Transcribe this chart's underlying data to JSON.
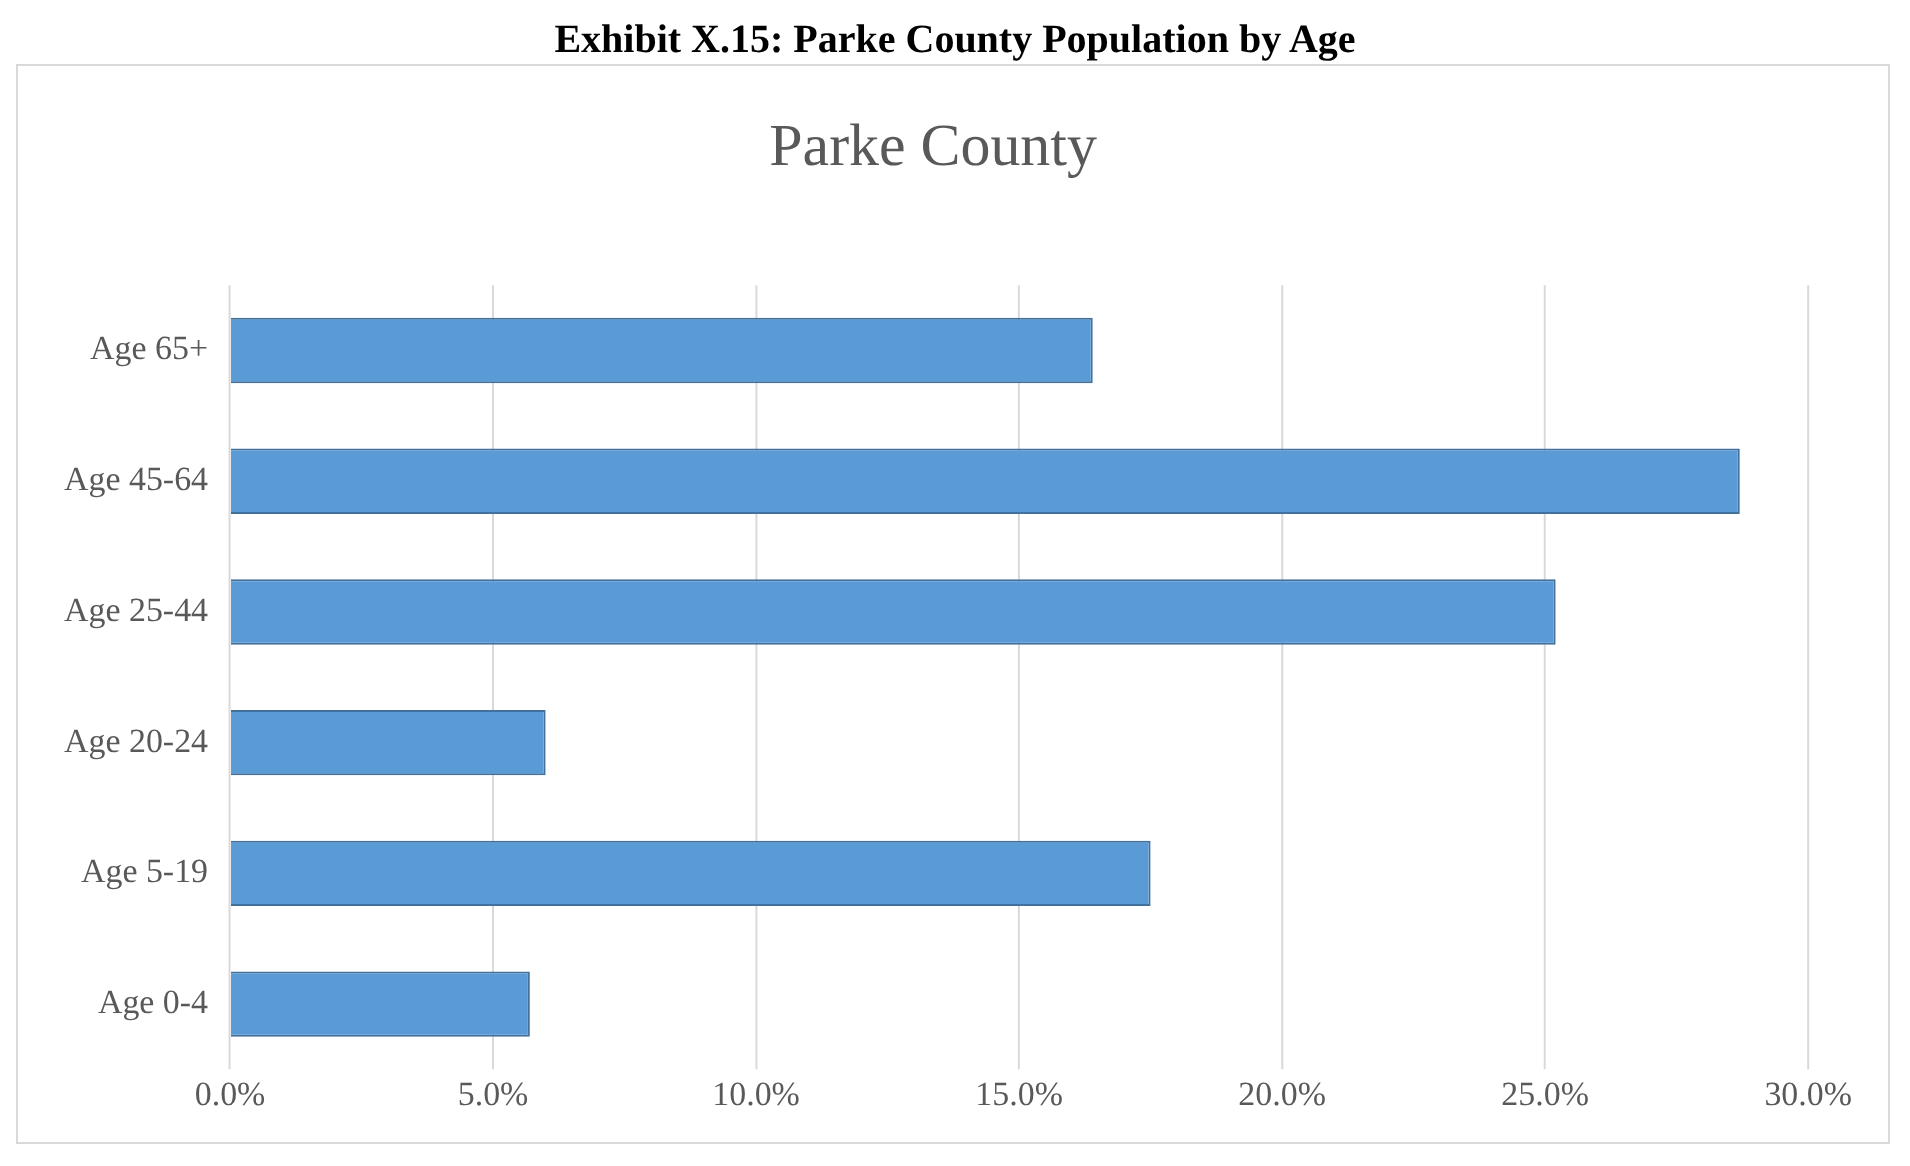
{
  "chart_data": {
    "type": "bar",
    "orientation": "horizontal",
    "title": "Exhibit X.15: Parke County Population by Age",
    "subtitle": "Parke County",
    "categories": [
      "Age 65+",
      "Age 45-64",
      "Age 25-44",
      "Age 20-24",
      "Age 5-19",
      "Age 0-4"
    ],
    "values": [
      16.4,
      28.7,
      25.2,
      6.0,
      17.5,
      5.7
    ],
    "color": "#5b9bd5",
    "xlim": [
      0,
      30
    ],
    "xticks": [
      {
        "value": 0,
        "label": "0.0%"
      },
      {
        "value": 5,
        "label": "5.0%"
      },
      {
        "value": 10,
        "label": "10.0%"
      },
      {
        "value": 15,
        "label": "15.0%"
      },
      {
        "value": 20,
        "label": "20.0%"
      },
      {
        "value": 25,
        "label": "25.0%"
      },
      {
        "value": 30,
        "label": "30.0%"
      }
    ],
    "grid": "x",
    "legend": false
  }
}
